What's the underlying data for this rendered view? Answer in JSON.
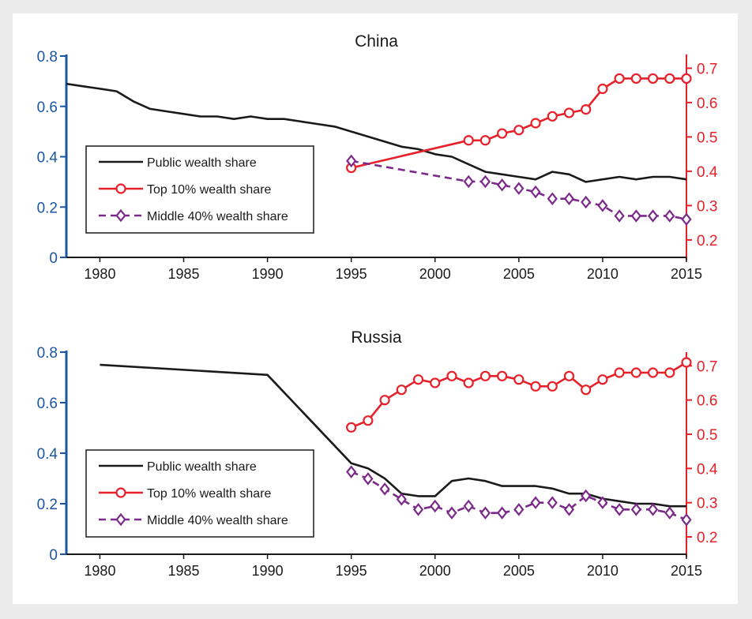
{
  "chart_data": [
    {
      "type": "line",
      "title": "China",
      "xlim": [
        1978,
        2015
      ],
      "x_ticks": [
        1980,
        1985,
        1990,
        1995,
        2000,
        2005,
        2010,
        2015
      ],
      "y_left": {
        "lim": [
          0,
          0.8
        ],
        "ticks": [
          "0",
          "0.2",
          "0.4",
          "0.6",
          "0.8"
        ],
        "tick_values": [
          0,
          0.2,
          0.4,
          0.6,
          0.8
        ],
        "color": "#1a56a5"
      },
      "y_right": {
        "lim": [
          0.14,
          0.74
        ],
        "ticks": [
          "0.2",
          "0.3",
          "0.4",
          "0.5",
          "0.6",
          "0.7"
        ],
        "tick_values": [
          0.2,
          0.3,
          0.4,
          0.5,
          0.6,
          0.7
        ],
        "color": "#e8202a"
      },
      "legend": [
        "Public wealth share",
        "Top 10% wealth share",
        "Middle 40% wealth share"
      ],
      "legend_placement": "left",
      "series": [
        {
          "name": "Public wealth share",
          "axis": "left",
          "color": "#1a1a1a",
          "marker": "none",
          "dash": false,
          "x": [
            1978,
            1979,
            1980,
            1981,
            1982,
            1983,
            1984,
            1985,
            1986,
            1987,
            1988,
            1989,
            1990,
            1991,
            1992,
            1993,
            1994,
            1995,
            1996,
            1997,
            1998,
            1999,
            2000,
            2001,
            2002,
            2003,
            2004,
            2005,
            2006,
            2007,
            2008,
            2009,
            2010,
            2011,
            2012,
            2013,
            2014,
            2015
          ],
          "y": [
            0.69,
            0.68,
            0.67,
            0.66,
            0.62,
            0.59,
            0.58,
            0.57,
            0.56,
            0.56,
            0.55,
            0.56,
            0.55,
            0.55,
            0.54,
            0.53,
            0.52,
            0.5,
            0.48,
            0.46,
            0.44,
            0.43,
            0.41,
            0.4,
            0.37,
            0.34,
            0.33,
            0.32,
            0.31,
            0.34,
            0.33,
            0.3,
            0.31,
            0.32,
            0.31,
            0.32,
            0.32,
            0.31
          ]
        },
        {
          "name": "Top 10% wealth share",
          "axis": "right",
          "color": "#e8202a",
          "marker": "circle",
          "dash": false,
          "x": [
            1995,
            2002,
            2003,
            2004,
            2005,
            2006,
            2007,
            2008,
            2009,
            2010,
            2011,
            2012,
            2013,
            2014,
            2015
          ],
          "y": [
            0.41,
            0.49,
            0.49,
            0.51,
            0.52,
            0.54,
            0.56,
            0.57,
            0.58,
            0.64,
            0.67,
            0.67,
            0.67,
            0.67,
            0.67
          ]
        },
        {
          "name": "Middle 40% wealth share",
          "axis": "right",
          "color": "#7b2a8a",
          "marker": "diamond",
          "dash": true,
          "x": [
            1995,
            2002,
            2003,
            2004,
            2005,
            2006,
            2007,
            2008,
            2009,
            2010,
            2011,
            2012,
            2013,
            2014,
            2015
          ],
          "y": [
            0.43,
            0.37,
            0.37,
            0.36,
            0.35,
            0.34,
            0.32,
            0.32,
            0.31,
            0.3,
            0.27,
            0.27,
            0.27,
            0.27,
            0.26
          ]
        }
      ]
    },
    {
      "type": "line",
      "title": "Russia",
      "xlim": [
        1978,
        2015
      ],
      "x_ticks": [
        1980,
        1985,
        1990,
        1995,
        2000,
        2005,
        2010,
        2015
      ],
      "y_left": {
        "lim": [
          0,
          0.8
        ],
        "ticks": [
          "0",
          "0.2",
          "0.4",
          "0.6",
          "0.8"
        ],
        "tick_values": [
          0,
          0.2,
          0.4,
          0.6,
          0.8
        ],
        "color": "#1a56a5"
      },
      "y_right": {
        "lim": [
          0.14,
          0.74
        ],
        "ticks": [
          "0.2",
          "0.3",
          "0.4",
          "0.5",
          "0.6",
          "0.7"
        ],
        "tick_values": [
          0.2,
          0.3,
          0.4,
          0.5,
          0.6,
          0.7
        ],
        "color": "#e8202a"
      },
      "legend": [
        "Public wealth share",
        "Top 10% wealth share",
        "Middle 40% wealth share"
      ],
      "legend_placement": "bottom-left",
      "series": [
        {
          "name": "Public wealth share",
          "axis": "left",
          "color": "#1a1a1a",
          "marker": "none",
          "dash": false,
          "x": [
            1980,
            1990,
            1995,
            1996,
            1997,
            1998,
            1999,
            2000,
            2001,
            2002,
            2003,
            2004,
            2005,
            2006,
            2007,
            2008,
            2009,
            2010,
            2011,
            2012,
            2013,
            2014,
            2015
          ],
          "y": [
            0.75,
            0.71,
            0.36,
            0.34,
            0.3,
            0.24,
            0.23,
            0.23,
            0.29,
            0.3,
            0.29,
            0.27,
            0.27,
            0.27,
            0.26,
            0.24,
            0.24,
            0.22,
            0.21,
            0.2,
            0.2,
            0.19,
            0.19
          ]
        },
        {
          "name": "Top 10% wealth share",
          "axis": "right",
          "color": "#e8202a",
          "marker": "circle",
          "dash": false,
          "x": [
            1995,
            1996,
            1997,
            1998,
            1999,
            2000,
            2001,
            2002,
            2003,
            2004,
            2005,
            2006,
            2007,
            2008,
            2009,
            2010,
            2011,
            2012,
            2013,
            2014,
            2015
          ],
          "y": [
            0.52,
            0.54,
            0.6,
            0.63,
            0.66,
            0.65,
            0.67,
            0.65,
            0.67,
            0.67,
            0.66,
            0.64,
            0.64,
            0.67,
            0.63,
            0.66,
            0.68,
            0.68,
            0.68,
            0.68,
            0.71
          ]
        },
        {
          "name": "Middle 40% wealth share",
          "axis": "right",
          "color": "#7b2a8a",
          "marker": "diamond",
          "dash": true,
          "x": [
            1995,
            1996,
            1997,
            1998,
            1999,
            2000,
            2001,
            2002,
            2003,
            2004,
            2005,
            2006,
            2007,
            2008,
            2009,
            2010,
            2011,
            2012,
            2013,
            2014,
            2015
          ],
          "y": [
            0.39,
            0.37,
            0.34,
            0.31,
            0.28,
            0.29,
            0.27,
            0.29,
            0.27,
            0.27,
            0.28,
            0.3,
            0.3,
            0.28,
            0.32,
            0.3,
            0.28,
            0.28,
            0.28,
            0.27,
            0.25
          ]
        }
      ]
    }
  ]
}
